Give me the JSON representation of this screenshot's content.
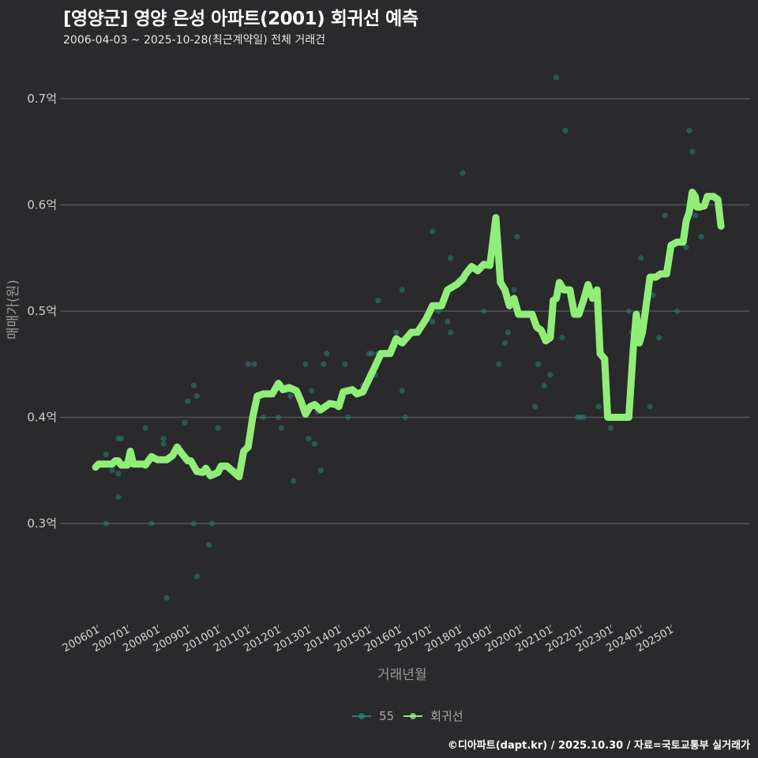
{
  "title": "[영양군] 영양 은성 아파트(2001) 회귀선 예측",
  "subtitle": "2006-04-03 ~ 2025-10-28(최근계약일) 전체 거래건",
  "caption": "©디아파트(dapt.kr) / 2025.10.30 / 자료=국토교통부 실거래가",
  "legend": [
    {
      "label": "55",
      "color": "#2a7f7a"
    },
    {
      "label": "회귀선",
      "color": "#90ee78"
    }
  ],
  "chart_data": {
    "type": "scatter+line",
    "title": "[영양군] 영양 은성 아파트(2001) 회귀선 예측",
    "xlabel": "거래년월",
    "ylabel": "매매가(원)",
    "x_ticks": [
      "200601",
      "200701",
      "200801",
      "200901",
      "201001",
      "201101",
      "201201",
      "201301",
      "201401",
      "201501",
      "201601",
      "201701",
      "201801",
      "201901",
      "202001",
      "202101",
      "202201",
      "202301",
      "202401",
      "202501"
    ],
    "y_ticks": [
      "0.3억",
      "0.4억",
      "0.5억",
      "0.6억",
      "0.7억"
    ],
    "y_tick_values": [
      0.3,
      0.4,
      0.5,
      0.6,
      0.7
    ],
    "ylim": [
      0.205,
      0.74
    ],
    "xlim": [
      2005.6,
      2026.0
    ],
    "grid": "horizontal",
    "legend_position": "bottom",
    "series": [
      {
        "name": "55",
        "type": "scatter",
        "color": "#2a7f7a",
        "points": [
          [
            2006.2,
            0.355
          ],
          [
            2006.3,
            0.3
          ],
          [
            2006.3,
            0.365
          ],
          [
            2006.5,
            0.35
          ],
          [
            2006.6,
            0.36
          ],
          [
            2006.7,
            0.325
          ],
          [
            2006.7,
            0.38
          ],
          [
            2006.8,
            0.38
          ],
          [
            2006.7,
            0.347
          ],
          [
            2006.8,
            0.355
          ],
          [
            2007.6,
            0.39
          ],
          [
            2007.8,
            0.3
          ],
          [
            2008.2,
            0.38
          ],
          [
            2008.2,
            0.375
          ],
          [
            2008.3,
            0.23
          ],
          [
            2008.9,
            0.395
          ],
          [
            2009.0,
            0.415
          ],
          [
            2009.2,
            0.43
          ],
          [
            2009.2,
            0.3
          ],
          [
            2009.3,
            0.42
          ],
          [
            2009.3,
            0.25
          ],
          [
            2009.7,
            0.28
          ],
          [
            2009.8,
            0.3
          ],
          [
            2010.0,
            0.39
          ],
          [
            2010.6,
            0.35
          ],
          [
            2011.0,
            0.45
          ],
          [
            2011.2,
            0.45
          ],
          [
            2011.5,
            0.4
          ],
          [
            2012.0,
            0.4
          ],
          [
            2012.1,
            0.39
          ],
          [
            2012.3,
            0.425
          ],
          [
            2012.4,
            0.42
          ],
          [
            2012.5,
            0.34
          ],
          [
            2012.8,
            0.41
          ],
          [
            2012.9,
            0.45
          ],
          [
            2013.0,
            0.38
          ],
          [
            2013.1,
            0.425
          ],
          [
            2013.2,
            0.375
          ],
          [
            2013.3,
            0.405
          ],
          [
            2013.4,
            0.35
          ],
          [
            2013.5,
            0.45
          ],
          [
            2013.6,
            0.46
          ],
          [
            2014.2,
            0.45
          ],
          [
            2014.3,
            0.4
          ],
          [
            2014.8,
            0.43
          ],
          [
            2015.0,
            0.46
          ],
          [
            2015.1,
            0.46
          ],
          [
            2015.2,
            0.44
          ],
          [
            2015.3,
            0.51
          ],
          [
            2015.3,
            0.46
          ],
          [
            2015.9,
            0.48
          ],
          [
            2016.1,
            0.425
          ],
          [
            2016.1,
            0.52
          ],
          [
            2016.2,
            0.4
          ],
          [
            2016.6,
            0.48
          ],
          [
            2017.1,
            0.575
          ],
          [
            2017.1,
            0.49
          ],
          [
            2017.3,
            0.5
          ],
          [
            2017.6,
            0.49
          ],
          [
            2017.7,
            0.48
          ],
          [
            2017.7,
            0.55
          ],
          [
            2018.0,
            0.53
          ],
          [
            2018.1,
            0.63
          ],
          [
            2018.8,
            0.5
          ],
          [
            2019.3,
            0.45
          ],
          [
            2019.5,
            0.47
          ],
          [
            2019.6,
            0.48
          ],
          [
            2019.8,
            0.52
          ],
          [
            2019.9,
            0.57
          ],
          [
            2020.5,
            0.41
          ],
          [
            2020.6,
            0.45
          ],
          [
            2020.8,
            0.43
          ],
          [
            2021.0,
            0.44
          ],
          [
            2021.2,
            0.72
          ],
          [
            2021.4,
            0.475
          ],
          [
            2021.5,
            0.67
          ],
          [
            2021.9,
            0.4
          ],
          [
            2022.0,
            0.4
          ],
          [
            2022.1,
            0.4
          ],
          [
            2022.6,
            0.41
          ],
          [
            2023.0,
            0.39
          ],
          [
            2023.6,
            0.5
          ],
          [
            2023.7,
            0.48
          ],
          [
            2024.0,
            0.55
          ],
          [
            2024.3,
            0.41
          ],
          [
            2024.4,
            0.515
          ],
          [
            2024.6,
            0.475
          ],
          [
            2024.8,
            0.59
          ],
          [
            2025.2,
            0.5
          ],
          [
            2025.5,
            0.56
          ],
          [
            2025.6,
            0.67
          ],
          [
            2025.7,
            0.65
          ],
          [
            2025.8,
            0.59
          ],
          [
            2026.0,
            0.57
          ]
        ]
      },
      {
        "name": "회귀선",
        "type": "line",
        "color": "#90ee78",
        "points": [
          [
            2005.95,
            0.353
          ],
          [
            2006.05,
            0.356
          ],
          [
            2006.2,
            0.356
          ],
          [
            2006.5,
            0.356
          ],
          [
            2006.6,
            0.359
          ],
          [
            2006.7,
            0.359
          ],
          [
            2006.8,
            0.355
          ],
          [
            2007.0,
            0.355
          ],
          [
            2007.1,
            0.368
          ],
          [
            2007.2,
            0.356
          ],
          [
            2007.4,
            0.356
          ],
          [
            2007.55,
            0.356
          ],
          [
            2007.6,
            0.355
          ],
          [
            2007.8,
            0.363
          ],
          [
            2008.0,
            0.36
          ],
          [
            2008.3,
            0.36
          ],
          [
            2008.5,
            0.364
          ],
          [
            2008.65,
            0.372
          ],
          [
            2008.8,
            0.366
          ],
          [
            2009.0,
            0.359
          ],
          [
            2009.1,
            0.359
          ],
          [
            2009.3,
            0.349
          ],
          [
            2009.5,
            0.348
          ],
          [
            2009.6,
            0.352
          ],
          [
            2009.75,
            0.345
          ],
          [
            2010.0,
            0.348
          ],
          [
            2010.1,
            0.354
          ],
          [
            2010.3,
            0.354
          ],
          [
            2010.5,
            0.349
          ],
          [
            2010.7,
            0.344
          ],
          [
            2010.85,
            0.368
          ],
          [
            2011.0,
            0.372
          ],
          [
            2011.15,
            0.4
          ],
          [
            2011.3,
            0.42
          ],
          [
            2011.5,
            0.422
          ],
          [
            2011.8,
            0.422
          ],
          [
            2012.0,
            0.432
          ],
          [
            2012.15,
            0.426
          ],
          [
            2012.35,
            0.428
          ],
          [
            2012.6,
            0.425
          ],
          [
            2012.75,
            0.415
          ],
          [
            2012.9,
            0.403
          ],
          [
            2013.05,
            0.41
          ],
          [
            2013.2,
            0.412
          ],
          [
            2013.4,
            0.407
          ],
          [
            2013.7,
            0.413
          ],
          [
            2013.9,
            0.412
          ],
          [
            2014.0,
            0.41
          ],
          [
            2014.15,
            0.424
          ],
          [
            2014.45,
            0.426
          ],
          [
            2014.6,
            0.422
          ],
          [
            2014.8,
            0.424
          ],
          [
            2015.0,
            0.436
          ],
          [
            2015.2,
            0.448
          ],
          [
            2015.4,
            0.46
          ],
          [
            2015.7,
            0.46
          ],
          [
            2015.9,
            0.474
          ],
          [
            2016.1,
            0.47
          ],
          [
            2016.4,
            0.48
          ],
          [
            2016.6,
            0.48
          ],
          [
            2016.9,
            0.493
          ],
          [
            2017.1,
            0.505
          ],
          [
            2017.4,
            0.505
          ],
          [
            2017.6,
            0.52
          ],
          [
            2017.9,
            0.525
          ],
          [
            2018.1,
            0.53
          ],
          [
            2018.2,
            0.535
          ],
          [
            2018.4,
            0.542
          ],
          [
            2018.6,
            0.538
          ],
          [
            2018.8,
            0.544
          ],
          [
            2019.0,
            0.543
          ],
          [
            2019.2,
            0.588
          ],
          [
            2019.35,
            0.527
          ],
          [
            2019.5,
            0.52
          ],
          [
            2019.65,
            0.505
          ],
          [
            2019.8,
            0.512
          ],
          [
            2019.95,
            0.497
          ],
          [
            2020.2,
            0.497
          ],
          [
            2020.4,
            0.497
          ],
          [
            2020.55,
            0.485
          ],
          [
            2020.7,
            0.482
          ],
          [
            2020.85,
            0.472
          ],
          [
            2021.0,
            0.475
          ],
          [
            2021.1,
            0.51
          ],
          [
            2021.2,
            0.512
          ],
          [
            2021.3,
            0.527
          ],
          [
            2021.45,
            0.52
          ],
          [
            2021.65,
            0.52
          ],
          [
            2021.8,
            0.497
          ],
          [
            2021.95,
            0.497
          ],
          [
            2022.1,
            0.51
          ],
          [
            2022.25,
            0.525
          ],
          [
            2022.4,
            0.512
          ],
          [
            2022.55,
            0.52
          ],
          [
            2022.65,
            0.46
          ],
          [
            2022.8,
            0.455
          ],
          [
            2022.9,
            0.4
          ],
          [
            2023.2,
            0.4
          ],
          [
            2023.6,
            0.4
          ],
          [
            2023.75,
            0.465
          ],
          [
            2023.85,
            0.497
          ],
          [
            2023.95,
            0.47
          ],
          [
            2024.05,
            0.48
          ],
          [
            2024.15,
            0.5
          ],
          [
            2024.3,
            0.532
          ],
          [
            2024.5,
            0.532
          ],
          [
            2024.65,
            0.535
          ],
          [
            2024.85,
            0.535
          ],
          [
            2025.0,
            0.562
          ],
          [
            2025.2,
            0.565
          ],
          [
            2025.4,
            0.565
          ],
          [
            2025.5,
            0.585
          ],
          [
            2025.6,
            0.593
          ],
          [
            2025.7,
            0.612
          ],
          [
            2025.8,
            0.608
          ],
          [
            2025.85,
            0.598
          ],
          [
            2025.95,
            0.598
          ],
          [
            2026.1,
            0.599
          ],
          [
            2026.2,
            0.608
          ],
          [
            2026.4,
            0.608
          ],
          [
            2026.55,
            0.605
          ],
          [
            2026.65,
            0.58
          ]
        ]
      }
    ]
  }
}
